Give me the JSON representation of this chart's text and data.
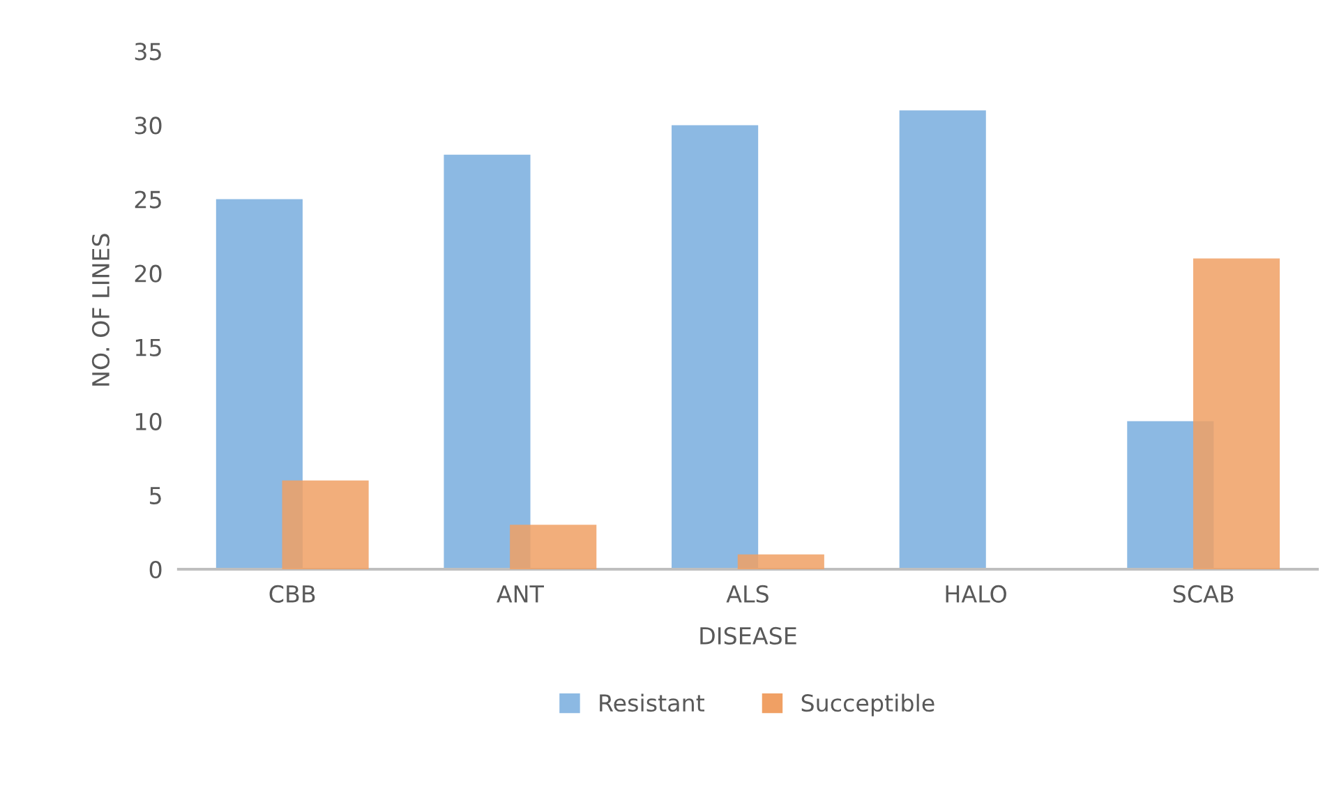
{
  "chart_data": {
    "type": "bar",
    "xlabel": "DISEASE",
    "ylabel": "NO. OF LINES",
    "categories": [
      "CBB",
      "ANT",
      "ALS",
      "HALO",
      "SCAB"
    ],
    "series": [
      {
        "name": "Resistant",
        "color": "#8cb9e3",
        "values": [
          25,
          28,
          30,
          31,
          10
        ]
      },
      {
        "name": "Succeptible",
        "color": "#f0a064",
        "values": [
          6,
          3,
          1,
          0,
          21
        ]
      }
    ],
    "ylim": [
      0,
      35
    ],
    "yticks": [
      0,
      5,
      10,
      15,
      20,
      25,
      30,
      35
    ],
    "grid": false,
    "legend": "bottom"
  }
}
